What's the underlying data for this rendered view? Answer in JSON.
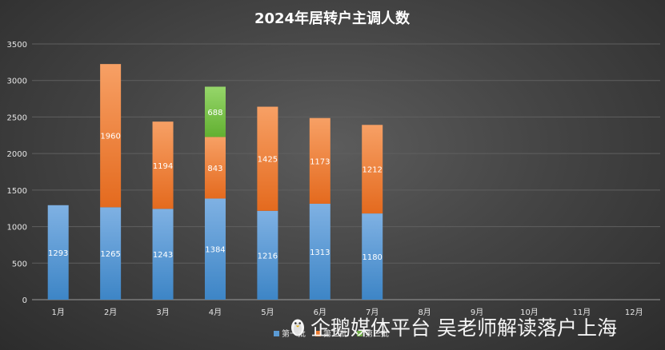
{
  "chart_data": {
    "type": "bar",
    "stacked": true,
    "title": "2024年居转户主调人数",
    "categories": [
      "1月",
      "2月",
      "3月",
      "4月",
      "5月",
      "6月",
      "7月",
      "8月",
      "9月",
      "10月",
      "11月",
      "12月"
    ],
    "series": [
      {
        "name": "第一批",
        "color": "#5b9bd5",
        "values": [
          1293,
          1265,
          1243,
          1384,
          1216,
          1313,
          1180,
          null,
          null,
          null,
          null,
          null
        ]
      },
      {
        "name": "第二批",
        "color": "#ed7d31",
        "values": [
          null,
          1960,
          1194,
          843,
          1425,
          1173,
          1212,
          null,
          null,
          null,
          null,
          null
        ]
      },
      {
        "name": "第三批",
        "color": "#70ad47",
        "values": [
          null,
          null,
          null,
          688,
          null,
          null,
          null,
          null,
          null,
          null,
          null,
          null
        ]
      }
    ],
    "yticks": [
      0,
      500,
      1000,
      1500,
      2000,
      2500,
      3000,
      3500
    ],
    "ylim": [
      0,
      3500
    ],
    "grid": true,
    "legend": "bottom",
    "data_labels": true
  },
  "watermark": {
    "icon": "penguin-icon",
    "text": "企鹅媒体平台 吴老师解读落户上海"
  }
}
